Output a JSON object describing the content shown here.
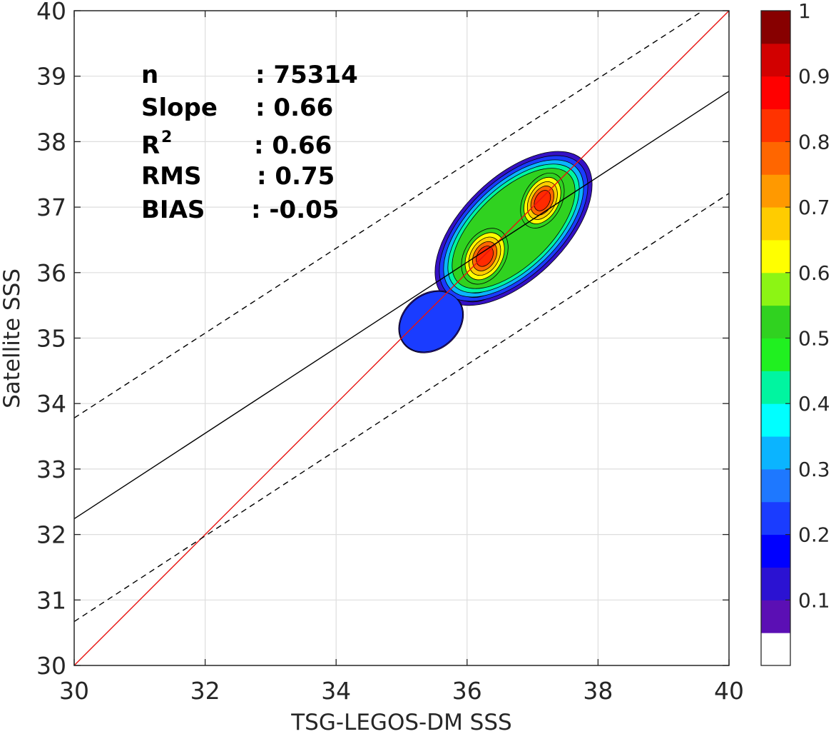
{
  "chart_data": {
    "type": "density-scatter",
    "xlabel": "TSG-LEGOS-DM SSS",
    "ylabel": "Satellite SSS",
    "xlim": [
      30,
      40
    ],
    "ylim": [
      30,
      40
    ],
    "x_ticks": [
      "30",
      "32",
      "34",
      "36",
      "38",
      "40"
    ],
    "y_ticks": [
      "30",
      "31",
      "32",
      "33",
      "34",
      "35",
      "36",
      "37",
      "38",
      "39",
      "40"
    ],
    "grid": true,
    "stats": [
      {
        "label": "n",
        "sep": ":",
        "value": "75314"
      },
      {
        "label": "Slope",
        "sep": ":",
        "value": "0.66"
      },
      {
        "label": "R",
        "sup": "2",
        "sep": ":",
        "value": "0.66"
      },
      {
        "label": "RMS",
        "sep": ":",
        "value": "0.75"
      },
      {
        "label": "BIAS",
        "sep": ":",
        "value": "-0.05"
      }
    ],
    "lines": [
      {
        "kind": "identity",
        "color": "#e8120f",
        "style": "solid",
        "x": [
          30,
          40
        ],
        "y": [
          30,
          40
        ]
      },
      {
        "kind": "regression",
        "color": "#000000",
        "style": "solid",
        "x": [
          30,
          40
        ],
        "y": [
          32.24,
          38.77
        ]
      },
      {
        "kind": "upper-bound",
        "color": "#000000",
        "style": "dashed",
        "x": [
          30,
          39.6
        ],
        "y": [
          33.78,
          40.0
        ]
      },
      {
        "kind": "lower-bound",
        "color": "#000000",
        "style": "dashed",
        "x": [
          30,
          40
        ],
        "y": [
          30.67,
          37.21
        ]
      }
    ],
    "density_peaks": [
      {
        "x": 36.27,
        "y": 36.25,
        "value": 0.9
      },
      {
        "x": 37.15,
        "y": 37.1,
        "value": 0.85
      }
    ],
    "colorbar": {
      "range": [
        0,
        1
      ],
      "ticks": [
        "0.1",
        "0.2",
        "0.3",
        "0.4",
        "0.5",
        "0.6",
        "0.7",
        "0.8",
        "0.9",
        "1"
      ],
      "colors": [
        "#ffffff",
        "#5b0fb4",
        "#2b12d2",
        "#0000ff",
        "#1a3cff",
        "#1e78ff",
        "#0bb4ff",
        "#00ffff",
        "#00f5a0",
        "#20f020",
        "#30d220",
        "#8cf514",
        "#ffff00",
        "#ffcc00",
        "#ff9900",
        "#ff6600",
        "#ff3300",
        "#ff0000",
        "#d20000",
        "#870000"
      ]
    }
  }
}
